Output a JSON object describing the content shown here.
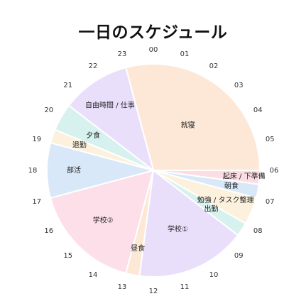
{
  "title": "一日のスケジュール",
  "hour_labels": [
    "00",
    "01",
    "02",
    "03",
    "04",
    "05",
    "06",
    "07",
    "08",
    "09",
    "10",
    "11",
    "12",
    "13",
    "14",
    "15",
    "16",
    "17",
    "18",
    "19",
    "20",
    "21",
    "22",
    "23"
  ],
  "chart_data": {
    "type": "pie",
    "title": "一日のスケジュール",
    "unit": "hour",
    "segments": [
      {
        "label": "就寝",
        "start": 23.0,
        "end": 6.0,
        "color": "#fde8d7"
      },
      {
        "label": "起床 / 下準備",
        "start": 6.0,
        "end": 6.5,
        "color": "#fcdde4"
      },
      {
        "label": "朝食",
        "start": 6.5,
        "end": 7.0,
        "color": "#d8e8f8"
      },
      {
        "label": "勉強 / タスク整理",
        "start": 7.0,
        "end": 8.0,
        "color": "#fcf1dc"
      },
      {
        "label": "出勤",
        "start": 8.0,
        "end": 8.5,
        "color": "#d6f1ee"
      },
      {
        "label": "学校①",
        "start": 8.5,
        "end": 12.5,
        "color": "#e9dffb"
      },
      {
        "label": "昼食",
        "start": 12.5,
        "end": 13.0,
        "color": "#fce8d5"
      },
      {
        "label": "学校②",
        "start": 13.0,
        "end": 17.0,
        "color": "#fcdfe8"
      },
      {
        "label": "部活",
        "start": 17.0,
        "end": 19.0,
        "color": "#d8e8f8"
      },
      {
        "label": "退勤",
        "start": 19.0,
        "end": 19.5,
        "color": "#fcf1dc"
      },
      {
        "label": "夕食",
        "start": 19.5,
        "end": 20.5,
        "color": "#d6f1ee"
      },
      {
        "label": "自由時間 / 仕事",
        "start": 20.5,
        "end": 23.0,
        "color": "#e9dffb"
      }
    ]
  }
}
